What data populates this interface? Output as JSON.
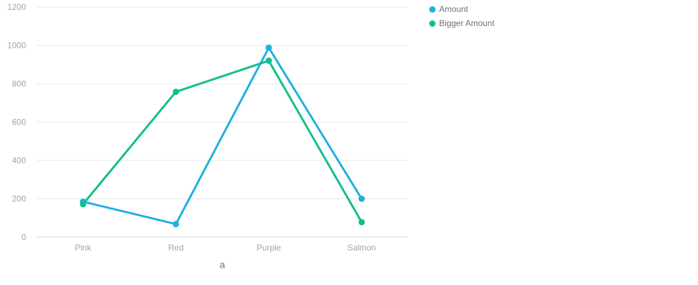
{
  "chart_data": {
    "type": "line",
    "categories": [
      "Pink",
      "Red",
      "Purple",
      "Salmon"
    ],
    "series": [
      {
        "name": "Amount",
        "values": [
          185,
          68,
          988,
          200
        ],
        "color": "#1eb0e0"
      },
      {
        "name": "Bigger Amount",
        "values": [
          172,
          758,
          920,
          78
        ],
        "color": "#10bf8c"
      }
    ],
    "y_ticks": [
      "0",
      "200",
      "400",
      "600",
      "800",
      "1000",
      "1200"
    ],
    "ylim": [
      0,
      1200
    ],
    "xlabel": "a",
    "ylabel": "",
    "grid": true,
    "legend_position": "top-right"
  },
  "colors": {
    "grid": "#e8e8e8",
    "axis": "#cfd4da",
    "tick_text": "#9aa5b1",
    "xlabel_text": "#6b7280"
  }
}
